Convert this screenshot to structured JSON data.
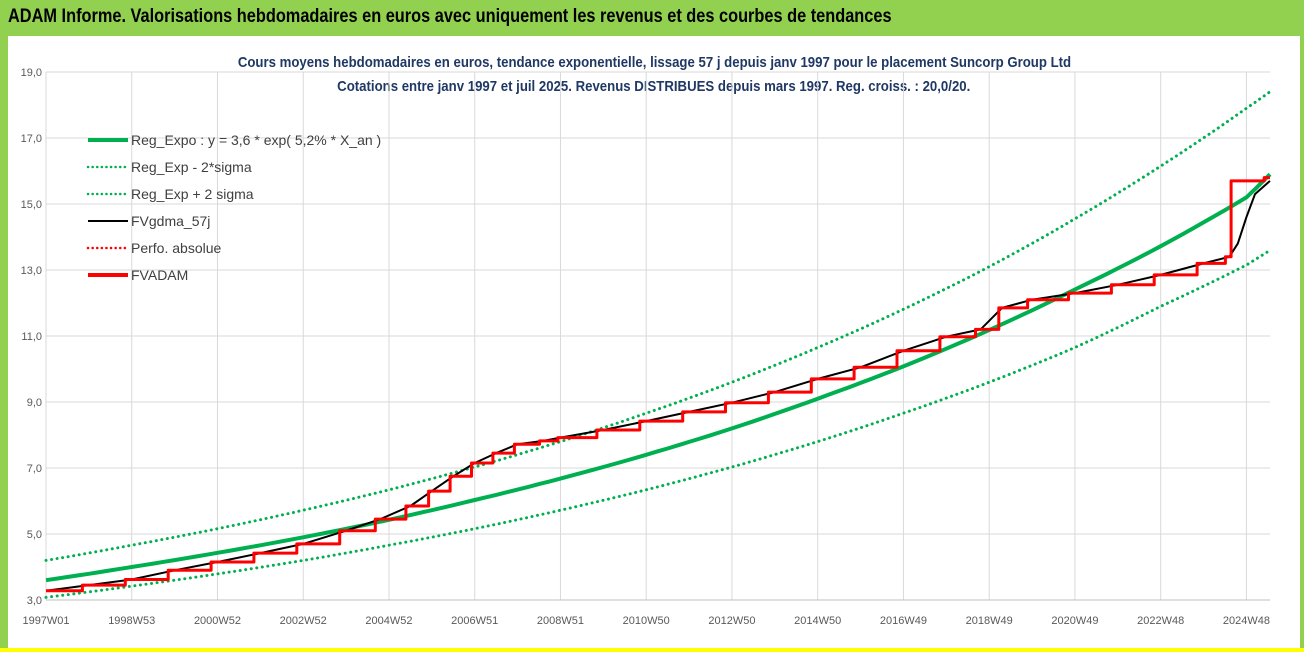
{
  "header": {
    "title": "ADAM Informe. Valorisations hebdomadaires en euros avec uniquement les revenus et des courbes de tendances"
  },
  "colors": {
    "banner": "#92d050",
    "regression": "#00b050",
    "fvgdma": "#000000",
    "perfo": "#ff0000",
    "fvadam": "#ff0000",
    "title_text": "#1f3864"
  },
  "chart_data": {
    "type": "line",
    "title": "Cours moyens hebdomadaires en euros, tendance exponentielle, lissage 57 j depuis janv 1997 pour le placement Suncorp Group Ltd",
    "subtitle": "Cotations entre janv 1997 et juil 2025. Revenus DISTRIBUES depuis mars 1997. Reg. croiss. : 20,0/20.",
    "xlabel": "",
    "ylabel": "",
    "x_range": [
      1997.0,
      2025.55
    ],
    "ylim": [
      3.0,
      19.0
    ],
    "y_ticks": [
      "3,0",
      "5,0",
      "7,0",
      "9,0",
      "11,0",
      "13,0",
      "15,0",
      "17,0",
      "19,0"
    ],
    "y_tick_values": [
      3,
      5,
      7,
      9,
      11,
      13,
      15,
      17,
      19
    ],
    "x_ticks": [
      "1997W01",
      "1998W53",
      "2000W52",
      "2002W52",
      "2004W52",
      "2006W51",
      "2008W51",
      "2010W50",
      "2012W50",
      "2014W50",
      "2016W49",
      "2018W49",
      "2020W49",
      "2022W48",
      "2024W48"
    ],
    "x_tick_values": [
      1997.0,
      1999.0,
      2001.0,
      2003.0,
      2005.0,
      2007.0,
      2009.0,
      2011.0,
      2013.0,
      2015.0,
      2017.0,
      2019.0,
      2021.0,
      2023.0,
      2025.0
    ],
    "grid": true,
    "legend_position": "top-left",
    "legend": [
      {
        "label": "Reg_Expo : y = 3,6 * exp( 5,2% *  X_an )",
        "color": "#00b050",
        "style": "solid-thick"
      },
      {
        "label": "Reg_Exp - 2*sigma",
        "color": "#00b050",
        "style": "dotted"
      },
      {
        "label": "Reg_Exp + 2 sigma",
        "color": "#00b050",
        "style": "dotted"
      },
      {
        "label": "FVgdma_57j",
        "color": "#000000",
        "style": "solid"
      },
      {
        "label": "Perfo. absolue",
        "color": "#ff0000",
        "style": "dotted"
      },
      {
        "label": "FVADAM",
        "color": "#ff0000",
        "style": "solid-thick"
      }
    ],
    "series": [
      {
        "name": "Reg_Expo : y = 3,6 * exp( 5,2% *  X_an )",
        "x": [
          1997.0,
          1999.0,
          2001.0,
          2003.0,
          2005.0,
          2007.0,
          2009.0,
          2011.0,
          2013.0,
          2015.0,
          2017.0,
          2019.0,
          2021.0,
          2023.0,
          2025.0,
          2025.55
        ],
        "y": [
          3.6,
          4.0,
          4.43,
          4.9,
          5.43,
          6.03,
          6.68,
          7.4,
          8.2,
          9.1,
          10.08,
          11.18,
          12.41,
          13.72,
          15.2,
          15.9
        ]
      },
      {
        "name": "Reg_Exp - 2*sigma",
        "x": [
          1997.0,
          1999.0,
          2001.0,
          2003.0,
          2005.0,
          2007.0,
          2009.0,
          2011.0,
          2013.0,
          2015.0,
          2017.0,
          2019.0,
          2021.0,
          2023.0,
          2025.0,
          2025.55
        ],
        "y": [
          3.08,
          3.42,
          3.79,
          4.2,
          4.66,
          5.16,
          5.72,
          6.34,
          7.03,
          7.8,
          8.66,
          9.6,
          10.65,
          11.9,
          13.15,
          13.6
        ]
      },
      {
        "name": "Reg_Exp + 2 sigma",
        "x": [
          1997.0,
          1999.0,
          2001.0,
          2003.0,
          2005.0,
          2007.0,
          2009.0,
          2011.0,
          2013.0,
          2015.0,
          2017.0,
          2019.0,
          2021.0,
          2023.0,
          2025.0,
          2025.55
        ],
        "y": [
          4.2,
          4.66,
          5.16,
          5.72,
          6.34,
          7.03,
          7.8,
          8.66,
          9.6,
          10.65,
          11.81,
          13.1,
          14.55,
          16.15,
          17.9,
          18.4
        ]
      },
      {
        "name": "FVADAM",
        "x": [
          1997.0,
          1998.0,
          1999.0,
          2000.0,
          2001.0,
          2002.0,
          2003.0,
          2004.0,
          2004.8,
          2005.5,
          2006.0,
          2006.5,
          2007.0,
          2007.5,
          2008.0,
          2008.6,
          2009.0,
          2010.0,
          2011.0,
          2012.0,
          2013.0,
          2014.0,
          2015.0,
          2016.0,
          2017.0,
          2018.0,
          2018.8,
          2019.3,
          2020.0,
          2021.0,
          2022.0,
          2023.0,
          2024.0,
          2024.6,
          2024.65,
          2025.55
        ],
        "y": [
          3.28,
          3.45,
          3.62,
          3.9,
          4.15,
          4.42,
          4.7,
          5.1,
          5.45,
          5.85,
          6.3,
          6.75,
          7.15,
          7.45,
          7.72,
          7.82,
          7.92,
          8.15,
          8.42,
          8.7,
          8.98,
          9.3,
          9.7,
          10.05,
          10.55,
          10.98,
          11.2,
          11.85,
          12.1,
          12.3,
          12.55,
          12.85,
          13.2,
          13.4,
          15.7,
          15.8
        ]
      },
      {
        "name": "FVgdma_57j",
        "x": [
          1997.0,
          1998.0,
          1999.0,
          2000.0,
          2001.0,
          2002.0,
          2003.0,
          2004.0,
          2004.8,
          2005.5,
          2006.0,
          2006.5,
          2007.0,
          2007.5,
          2008.0,
          2008.6,
          2009.0,
          2010.0,
          2011.0,
          2012.0,
          2013.0,
          2014.0,
          2015.0,
          2016.0,
          2017.0,
          2018.0,
          2018.8,
          2019.3,
          2020.0,
          2021.0,
          2022.0,
          2023.0,
          2024.0,
          2024.6,
          2024.8,
          2025.0,
          2025.2,
          2025.55
        ],
        "y": [
          3.28,
          3.45,
          3.62,
          3.9,
          4.15,
          4.42,
          4.7,
          5.1,
          5.45,
          5.85,
          6.3,
          6.75,
          7.15,
          7.45,
          7.72,
          7.82,
          7.92,
          8.15,
          8.42,
          8.7,
          8.98,
          9.3,
          9.7,
          10.05,
          10.55,
          10.98,
          11.2,
          11.85,
          12.1,
          12.3,
          12.55,
          12.85,
          13.2,
          13.4,
          13.8,
          14.6,
          15.3,
          15.7
        ]
      }
    ]
  }
}
